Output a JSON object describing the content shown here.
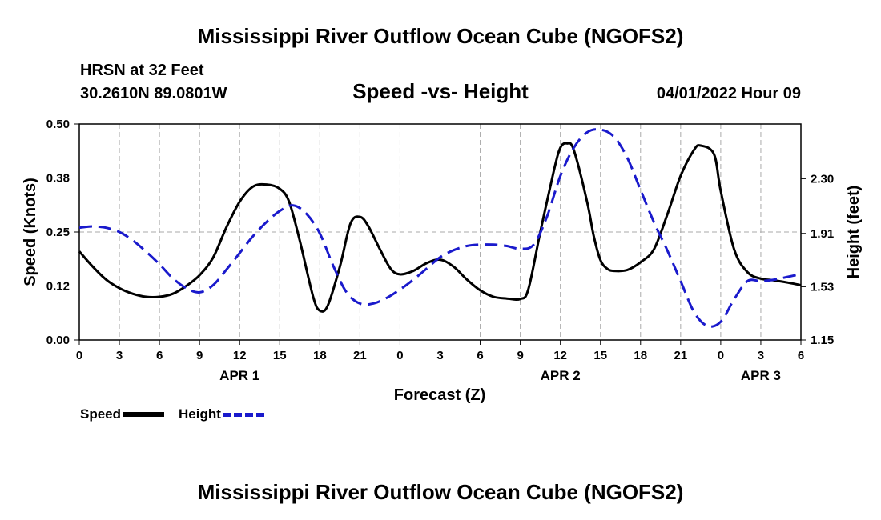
{
  "page": {
    "title": "Mississippi River Outflow Ocean Cube (NGOFS2)",
    "footer_title": "Mississippi River Outflow Ocean Cube (NGOFS2)",
    "station": "HRSN at 32 Feet",
    "location": "30.2610N  89.0801W",
    "datetime": "04/01/2022 Hour 09"
  },
  "legend": {
    "speed_label": "Speed",
    "height_label": "Height"
  },
  "colors": {
    "speed": "#000000",
    "height": "#1a1acc",
    "grid": "#aaaaaa"
  },
  "chart_data": {
    "type": "line",
    "title": "Speed -vs- Height",
    "xlabel": "Forecast (Z)",
    "ylabel": "Speed (Knots)",
    "ylabel_right": "Height (feet)",
    "xlim": [
      0,
      54
    ],
    "ylim": [
      0,
      0.5
    ],
    "ylim_right": [
      1.15,
      2.69
    ],
    "grid": true,
    "x_tick_values": [
      0,
      3,
      6,
      9,
      12,
      15,
      18,
      21,
      24,
      27,
      30,
      33,
      36,
      39,
      42,
      45,
      48,
      51,
      54
    ],
    "x_tick_labels": [
      "0",
      "3",
      "6",
      "9",
      "12",
      "15",
      "18",
      "21",
      "0",
      "3",
      "6",
      "9",
      "12",
      "15",
      "18",
      "21",
      "0",
      "3",
      "6"
    ],
    "y_ticks": [
      0.0,
      0.125,
      0.25,
      0.375,
      0.5
    ],
    "y_tick_labels": [
      "0.00",
      "0.12",
      "0.25",
      "0.38",
      "0.50"
    ],
    "y_right_ticks": [
      1.15,
      1.53,
      1.91,
      2.3
    ],
    "y_right_tick_labels": [
      "1.15",
      "1.53",
      "1.91",
      "2.30"
    ],
    "day_labels": [
      {
        "x": 12,
        "label": "APR 1"
      },
      {
        "x": 36,
        "label": "APR 2"
      },
      {
        "x": 51,
        "label": "APR 3"
      }
    ],
    "series": [
      {
        "name": "Speed",
        "axis": "left",
        "style": "solid",
        "x": [
          0,
          1,
          2,
          3,
          4,
          5,
          6,
          7,
          8,
          9,
          10,
          11,
          12,
          13,
          14,
          15,
          15.7,
          16.5,
          17.5,
          18,
          18.6,
          19.5,
          20.3,
          21,
          21.6,
          22.5,
          23.3,
          24,
          25,
          26,
          27,
          28,
          29,
          30,
          31,
          32,
          33,
          33.6,
          34.5,
          35.5,
          36,
          36.5,
          37,
          38,
          38.5,
          39,
          39.5,
          40,
          41,
          42,
          43,
          44,
          45,
          46,
          46.5,
          47.5,
          48,
          49,
          50,
          51,
          52,
          53,
          54
        ],
        "values": [
          0.205,
          0.17,
          0.14,
          0.12,
          0.107,
          0.1,
          0.1,
          0.107,
          0.125,
          0.15,
          0.19,
          0.26,
          0.32,
          0.355,
          0.36,
          0.35,
          0.32,
          0.23,
          0.1,
          0.068,
          0.08,
          0.17,
          0.27,
          0.285,
          0.265,
          0.21,
          0.165,
          0.152,
          0.16,
          0.178,
          0.186,
          0.17,
          0.14,
          0.115,
          0.1,
          0.096,
          0.095,
          0.117,
          0.25,
          0.39,
          0.445,
          0.455,
          0.44,
          0.32,
          0.24,
          0.185,
          0.165,
          0.16,
          0.162,
          0.18,
          0.21,
          0.29,
          0.38,
          0.44,
          0.45,
          0.43,
          0.345,
          0.21,
          0.157,
          0.142,
          0.138,
          0.133,
          0.127
        ]
      },
      {
        "name": "Height",
        "axis": "right",
        "style": "dashed",
        "x": [
          0,
          1,
          2,
          3,
          4,
          5,
          6,
          7,
          8,
          9,
          10,
          11,
          12,
          13,
          14,
          15,
          16,
          17,
          18,
          19,
          20,
          21,
          22,
          23,
          24,
          25,
          26,
          27,
          28,
          29,
          30,
          31,
          32,
          33,
          34,
          35,
          36,
          37,
          38,
          39,
          40,
          41,
          42,
          43,
          44,
          45,
          46,
          47,
          48,
          49,
          50,
          51,
          52,
          53,
          54
        ],
        "values": [
          1.95,
          1.96,
          1.95,
          1.92,
          1.86,
          1.78,
          1.69,
          1.59,
          1.52,
          1.49,
          1.54,
          1.65,
          1.77,
          1.89,
          1.99,
          2.07,
          2.11,
          2.05,
          1.91,
          1.68,
          1.49,
          1.41,
          1.41,
          1.45,
          1.51,
          1.58,
          1.66,
          1.74,
          1.79,
          1.82,
          1.83,
          1.83,
          1.82,
          1.8,
          1.83,
          2.03,
          2.32,
          2.52,
          2.63,
          2.65,
          2.6,
          2.45,
          2.22,
          1.99,
          1.79,
          1.57,
          1.35,
          1.25,
          1.28,
          1.44,
          1.57,
          1.57,
          1.58,
          1.6,
          1.62
        ]
      }
    ]
  }
}
